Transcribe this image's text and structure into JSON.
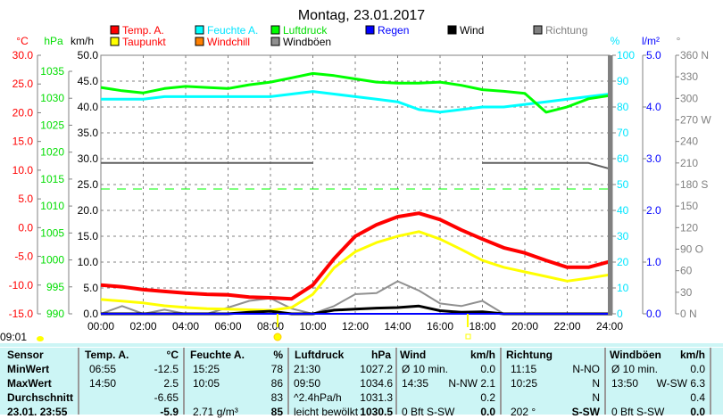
{
  "title": "Montag, 23.01.2017",
  "sunrise_time": "09:01",
  "legend": [
    {
      "label": "Temp. A.",
      "color": "#ff0000",
      "text_color": "#ff0000"
    },
    {
      "label": "Feuchte A.",
      "color": "#00ffff",
      "text_color": "#00e5ff"
    },
    {
      "label": "Luftdruck",
      "color": "#00ff00",
      "text_color": "#00dd00"
    },
    {
      "label": "Regen",
      "color": "#0000ff",
      "text_color": "#0000ff"
    },
    {
      "label": "Wind",
      "color": "#000000",
      "text_color": "#000000"
    },
    {
      "label": "Richtung",
      "color": "#808080",
      "text_color": "#808080"
    },
    {
      "label": "Taupunkt",
      "color": "#ffff00",
      "text_color": "#ff0000"
    },
    {
      "label": "Windchill",
      "color": "#ff8000",
      "text_color": "#ff0000"
    },
    {
      "label": "Windböen",
      "color": "#909090",
      "text_color": "#000000"
    }
  ],
  "chart_data": {
    "type": "line",
    "title": "Montag, 23.01.2017",
    "x": [
      0,
      1,
      2,
      3,
      4,
      5,
      6,
      7,
      8,
      9,
      10,
      11,
      12,
      13,
      14,
      15,
      16,
      17,
      18,
      19,
      20,
      21,
      22,
      23,
      24
    ],
    "x_ticks": [
      "00:00",
      "02:00",
      "04:00",
      "06:00",
      "08:00",
      "10:00",
      "12:00",
      "14:00",
      "16:00",
      "18:00",
      "20:00",
      "22:00",
      "24:00"
    ],
    "axes": {
      "temp": {
        "unit": "°C",
        "range": [
          -15,
          30
        ],
        "ticks": [
          "30.0",
          "25.0",
          "20.0",
          "15.0",
          "10.0",
          "5.0",
          "0.0",
          "-5.0",
          "-10.0",
          "-15.0"
        ]
      },
      "pressure": {
        "unit": "hPa",
        "range": [
          990,
          1035
        ],
        "ticks": [
          "1035",
          "1030",
          "1025",
          "1020",
          "1015",
          "1010",
          "1005",
          "1000",
          "995",
          "990"
        ]
      },
      "wind": {
        "unit": "km/h",
        "range": [
          0,
          50
        ],
        "ticks": [
          "50.0",
          "45.0",
          "40.0",
          "35.0",
          "30.0",
          "25.0",
          "20.0",
          "15.0",
          "10.0",
          "5.0",
          "0.0"
        ]
      },
      "humidity": {
        "unit": "%",
        "range": [
          0,
          100
        ],
        "ticks": [
          "100",
          "90",
          "80",
          "70",
          "60",
          "50",
          "40",
          "30",
          "20",
          "10",
          "0"
        ]
      },
      "rain": {
        "unit": "l/m²",
        "range": [
          0,
          5
        ],
        "ticks": [
          "5.0",
          "4.0",
          "3.0",
          "2.0",
          "1.0",
          "0.0"
        ]
      },
      "direction": {
        "unit": "°",
        "range": [
          0,
          360
        ],
        "ticks": [
          "360 N",
          "330",
          "300",
          "270 W",
          "240",
          "210",
          "180 S",
          "150",
          "120",
          "90  O",
          "60",
          "30",
          "0   N"
        ]
      }
    },
    "series": [
      {
        "name": "Temp. A.",
        "axis": "temp",
        "color": "#ff0000",
        "values": [
          -10.0,
          -10.3,
          -10.8,
          -11.1,
          -11.4,
          -11.6,
          -11.7,
          -12.1,
          -12.2,
          -12.4,
          -10.0,
          -5.4,
          -1.5,
          0.5,
          1.9,
          2.5,
          1.4,
          -0.4,
          -2.0,
          -3.5,
          -4.4,
          -5.7,
          -6.9,
          -6.9,
          -5.9
        ]
      },
      {
        "name": "Taupunkt",
        "axis": "temp",
        "color": "#ffff00",
        "values": [
          -12.5,
          -12.8,
          -13.1,
          -13.6,
          -13.9,
          -14.1,
          -14.2,
          -14.3,
          -14.4,
          -13.9,
          -11.6,
          -7.0,
          -4.2,
          -2.6,
          -1.5,
          -0.7,
          -2.0,
          -3.8,
          -5.7,
          -6.9,
          -7.7,
          -8.5,
          -9.3,
          -8.8,
          -8.2
        ]
      },
      {
        "name": "Feuchte A.",
        "axis": "humidity",
        "color": "#00ffff",
        "values": [
          83,
          83,
          83,
          84,
          84,
          84,
          84,
          84,
          84,
          85,
          86,
          85,
          84,
          83,
          82,
          79,
          78,
          79,
          80,
          80,
          81,
          82,
          83,
          84,
          85
        ]
      },
      {
        "name": "Luftdruck",
        "axis": "pressure",
        "color": "#00ff00",
        "values": [
          1032.0,
          1031.4,
          1031.0,
          1031.8,
          1032.2,
          1032.0,
          1031.8,
          1032.5,
          1033.0,
          1033.8,
          1034.6,
          1034.2,
          1033.6,
          1033.0,
          1032.8,
          1032.8,
          1033.0,
          1032.4,
          1031.6,
          1031.3,
          1030.9,
          1027.4,
          1028.4,
          1029.9,
          1030.5
        ]
      },
      {
        "name": "Wind",
        "axis": "wind",
        "color": "#000000",
        "values": [
          0,
          0,
          0,
          0,
          0,
          0,
          0,
          0.3,
          0.5,
          0,
          0,
          0.7,
          0.9,
          1.1,
          1.2,
          1.5,
          0.6,
          0.3,
          0.4,
          0,
          0,
          0,
          0,
          0,
          0
        ]
      },
      {
        "name": "Windböen",
        "axis": "wind",
        "color": "#909090",
        "values": [
          0,
          1.5,
          0,
          0.8,
          0,
          0,
          1.2,
          2.5,
          3.0,
          1.0,
          0,
          1.5,
          3.8,
          4.0,
          6.3,
          4.5,
          2.0,
          1.5,
          2.5,
          0,
          0,
          0,
          0,
          0,
          0
        ]
      },
      {
        "name": "Richtung",
        "axis": "direction",
        "color": "#606060",
        "values": [
          210,
          210,
          210,
          210,
          210,
          210,
          210,
          210,
          210,
          210,
          210,
          null,
          null,
          null,
          null,
          null,
          null,
          null,
          210,
          210,
          210,
          210,
          210,
          210,
          202
        ]
      },
      {
        "name": "Regen",
        "axis": "rain",
        "color": "#0000ff",
        "values": [
          0,
          0,
          0,
          0,
          0,
          0,
          0,
          0,
          0,
          0,
          0,
          0,
          0,
          0,
          0,
          0,
          0,
          0,
          0,
          0,
          0,
          0,
          0,
          0,
          0
        ]
      }
    ]
  },
  "table": {
    "headers": {
      "sensor": "Sensor",
      "temp": "Temp. A.",
      "temp_unit": "°C",
      "hum": "Feuchte A.",
      "hum_unit": "%",
      "press": "Luftdruck",
      "press_unit": "hPa",
      "wind": "Wind",
      "wind_unit": "km/h",
      "dir": "Richtung",
      "gust": "Windböen",
      "gust_unit": "km/h"
    },
    "rows": [
      {
        "label": "MinWert",
        "temp_t": "06:55",
        "temp_v": "-12.5",
        "hum_t": "15:25",
        "hum_v": "78",
        "press_t": "21:30",
        "press_v": "1027.2",
        "wind_t": "Ø 10 min.",
        "wind_v": "0.0",
        "dir_t": "11:15",
        "dir_v": "N-NO",
        "gust_t": "Ø 10 min.",
        "gust_v": "0.0"
      },
      {
        "label": "MaxWert",
        "temp_t": "14:50",
        "temp_v": "2.5",
        "hum_t": "10:05",
        "hum_v": "86",
        "press_t": "09:50",
        "press_v": "1034.6",
        "wind_t": "14:35",
        "wind_v": "N-NW 2.1",
        "dir_t": "10:25",
        "dir_v": "N",
        "gust_t": "13:50",
        "gust_v": "W-SW 6.3"
      },
      {
        "label": "Durchschnitt",
        "temp_t": "",
        "temp_v": "-6.65",
        "hum_t": "",
        "hum_v": "83",
        "press_t": "^2.4hPa/h",
        "press_v": "1031.3",
        "wind_t": "",
        "wind_v": "0.2",
        "dir_t": "",
        "dir_v": "N",
        "gust_t": "",
        "gust_v": "0.4"
      },
      {
        "label": "23.01. 23:55",
        "temp_t": "",
        "temp_v": "-5.9",
        "hum_t": "2.71 g/m³",
        "hum_v": "85",
        "press_t": "leicht bewölkt",
        "press_v": "1030.5",
        "wind_t": "0 Bft S-SW",
        "wind_v": "0.0",
        "dir_t": "202 °",
        "dir_v": "S-SW",
        "gust_t": "0 Bft S-SW",
        "gust_v": "0.0"
      }
    ]
  }
}
